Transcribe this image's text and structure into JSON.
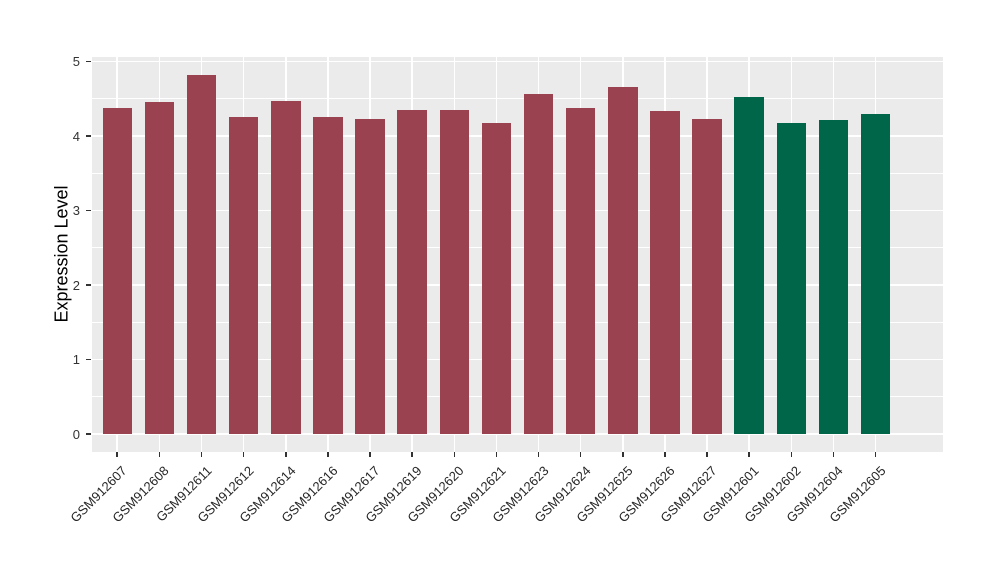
{
  "chart_data": {
    "type": "bar",
    "title": "",
    "xlabel": "",
    "ylabel": "Expression Level",
    "categories": [
      "GSM912607",
      "GSM912608",
      "GSM912611",
      "GSM912612",
      "GSM912614",
      "GSM912616",
      "GSM912617",
      "GSM912619",
      "GSM912620",
      "GSM912621",
      "GSM912623",
      "GSM912624",
      "GSM912625",
      "GSM912626",
      "GSM912627",
      "GSM912601",
      "GSM912602",
      "GSM912604",
      "GSM912605"
    ],
    "values": [
      4.37,
      4.45,
      4.82,
      4.26,
      4.47,
      4.26,
      4.23,
      4.35,
      4.35,
      4.18,
      4.56,
      4.38,
      4.66,
      4.34,
      4.23,
      4.53,
      4.18,
      4.22,
      4.29
    ],
    "bar_groups": [
      "groupA",
      "groupA",
      "groupA",
      "groupA",
      "groupA",
      "groupA",
      "groupA",
      "groupA",
      "groupA",
      "groupA",
      "groupA",
      "groupA",
      "groupA",
      "groupA",
      "groupA",
      "groupB",
      "groupB",
      "groupB",
      "groupB"
    ],
    "group_colors": {
      "groupA": "#9b4250",
      "groupB": "#006649"
    },
    "yticks": [
      0,
      1,
      2,
      3,
      4,
      5
    ],
    "ylim": [
      -0.24,
      5.06
    ],
    "baseline": 0,
    "bar_width_frac": 0.7,
    "grid": "on",
    "legend_position": "none",
    "panel_bg": "#ebebeb",
    "grid_color": "#ffffff",
    "axis_text_color": "#333333",
    "axis_title_color": "#000000",
    "tick_mark_color": "#333333"
  }
}
